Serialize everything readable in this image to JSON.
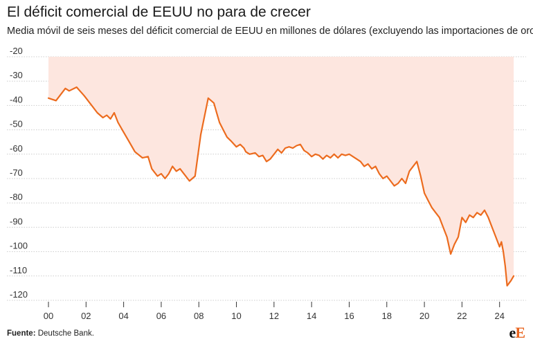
{
  "title": "El déficit comercial de EEUU no para de crecer",
  "subtitle": "Media móvil de seis meses del déficit comercial de EEUU en millones de dólares (excluyendo las importaciones de oro)",
  "source_label": "Fuente:",
  "source_text": "Deutsche Bank.",
  "logo": {
    "main": "e",
    "accent": "E"
  },
  "colors": {
    "line": "#ec6b1e",
    "fill": "#fde6df",
    "grid": "#cccccc"
  },
  "chart_data": {
    "type": "area",
    "title": "El déficit comercial de EEUU no para de crecer",
    "subtitle": "Media móvil de seis meses del déficit comercial de EEUU en millones de dólares (excluyendo las importaciones de oro)",
    "xlabel": "",
    "ylabel": "",
    "xlim": [
      0,
      25
    ],
    "ylim": [
      -120,
      -20
    ],
    "grid": true,
    "x_ticks": [
      0,
      2,
      4,
      6,
      8,
      10,
      12,
      14,
      16,
      18,
      20,
      22,
      24
    ],
    "x_tick_labels": [
      "00",
      "02",
      "04",
      "06",
      "08",
      "10",
      "12",
      "14",
      "16",
      "18",
      "20",
      "22",
      "24"
    ],
    "y_ticks": [
      -20,
      -30,
      -40,
      -50,
      -60,
      -70,
      -80,
      -90,
      -100,
      -110,
      -120
    ],
    "y_tick_labels": [
      "-20",
      "-30",
      "-40",
      "-50",
      "-60",
      "-70",
      "-80",
      "-90",
      "-100",
      "-110",
      "-120"
    ],
    "series": [
      {
        "x": [
          0.0,
          0.4,
          0.9,
          1.1,
          1.5,
          1.9,
          2.3,
          2.6,
          2.9,
          3.1,
          3.3,
          3.5,
          3.7,
          4.0,
          4.3,
          4.6,
          5.0,
          5.3,
          5.5,
          5.8,
          6.0,
          6.2,
          6.4,
          6.6,
          6.8,
          7.0,
          7.5,
          7.8,
          8.1,
          8.5,
          8.8,
          8.95,
          9.1,
          9.3,
          9.5,
          9.7,
          10.0,
          10.2,
          10.4,
          10.5,
          10.7,
          11.0,
          11.2,
          11.4,
          11.6,
          11.8,
          12.0,
          12.2,
          12.4,
          12.6,
          12.8,
          13.0,
          13.2,
          13.4,
          13.6,
          13.8,
          14.0,
          14.2,
          14.4,
          14.6,
          14.8,
          15.0,
          15.2,
          15.4,
          15.6,
          15.8,
          16.0,
          16.2,
          16.4,
          16.6,
          16.8,
          17.0,
          17.2,
          17.4,
          17.6,
          17.8,
          18.0,
          18.2,
          18.4,
          18.6,
          18.8,
          19.0,
          19.2,
          19.4,
          19.6,
          19.8,
          20.0,
          20.2,
          20.4,
          20.6,
          20.8,
          21.0,
          21.2,
          21.4,
          21.6,
          21.8,
          22.0,
          22.2,
          22.4,
          22.6,
          22.8,
          23.0,
          23.2,
          23.4,
          23.6,
          23.8,
          24.0,
          24.1,
          24.2,
          24.3,
          24.4,
          24.6,
          24.75
        ],
        "values": [
          -37,
          -38,
          -33,
          -34,
          -32.5,
          -36,
          -40,
          -43,
          -45,
          -44,
          -45.5,
          -43,
          -47,
          -51,
          -55,
          -59,
          -61.5,
          -61,
          -66,
          -69,
          -68,
          -70,
          -68,
          -65,
          -67,
          -66,
          -71,
          -69,
          -52,
          -37,
          -39,
          -43,
          -47,
          -50,
          -53,
          -54.5,
          -57,
          -56,
          -57.5,
          -59,
          -60,
          -59.5,
          -61,
          -60.5,
          -63,
          -62,
          -60,
          -58,
          -59.5,
          -57.5,
          -57,
          -57.5,
          -56.5,
          -56,
          -58.5,
          -59.5,
          -61,
          -60,
          -60.5,
          -62,
          -60.5,
          -61.5,
          -60,
          -61.5,
          -60,
          -60.5,
          -60,
          -61,
          -62,
          -63,
          -65,
          -64,
          -66,
          -65,
          -68,
          -70,
          -69,
          -71,
          -73,
          -72,
          -70,
          -72,
          -67,
          -65,
          -63,
          -69,
          -76,
          -79,
          -82,
          -84,
          -86,
          -90,
          -94,
          -101,
          -97,
          -94,
          -86,
          -88,
          -85,
          -86,
          -84,
          -85,
          -83,
          -86,
          -90,
          -94,
          -98,
          -96,
          -100,
          -106,
          -114,
          -112,
          -110
        ]
      }
    ]
  }
}
